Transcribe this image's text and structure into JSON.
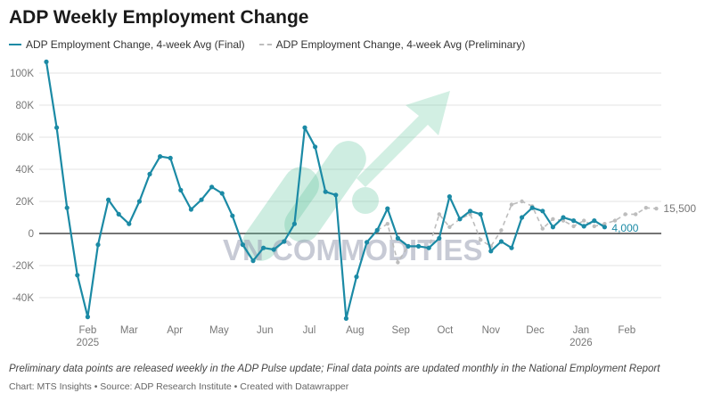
{
  "chart_data": {
    "type": "line",
    "title": "ADP Weekly Employment Change",
    "xlabel": "",
    "ylabel": "",
    "ylim": [
      -55000,
      110000
    ],
    "grid": true,
    "legend_position": "top-left",
    "y_ticks": [
      "-40K",
      "-20K",
      "0",
      "20K",
      "40K",
      "60K",
      "80K",
      "100K"
    ],
    "y_tick_values": [
      -40000,
      -20000,
      0,
      20000,
      40000,
      60000,
      80000,
      100000
    ],
    "x_ticks": [
      {
        "label": "Feb",
        "sub": "2025",
        "date": "2025-02-01"
      },
      {
        "label": "Mar",
        "sub": "",
        "date": "2025-03-01"
      },
      {
        "label": "Apr",
        "sub": "",
        "date": "2025-04-01"
      },
      {
        "label": "May",
        "sub": "",
        "date": "2025-05-01"
      },
      {
        "label": "Jun",
        "sub": "",
        "date": "2025-06-01"
      },
      {
        "label": "Jul",
        "sub": "",
        "date": "2025-07-01"
      },
      {
        "label": "Aug",
        "sub": "",
        "date": "2025-08-01"
      },
      {
        "label": "Sep",
        "sub": "",
        "date": "2025-09-01"
      },
      {
        "label": "Oct",
        "sub": "",
        "date": "2025-10-01"
      },
      {
        "label": "Nov",
        "sub": "",
        "date": "2025-11-01"
      },
      {
        "label": "Dec",
        "sub": "",
        "date": "2025-12-01"
      },
      {
        "label": "Jan",
        "sub": "2026",
        "date": "2026-01-01"
      },
      {
        "label": "Feb",
        "sub": "",
        "date": "2026-02-01"
      }
    ],
    "x_first_date": "2025-01-04",
    "x_step_days": 7,
    "series": [
      {
        "name": "ADP Employment Change, 4-week Avg (Final)",
        "color": "#1b8aa5",
        "style": "solid",
        "start_week": 0,
        "values": [
          107000,
          66000,
          16000,
          -26000,
          -52000,
          -7000,
          21000,
          12000,
          6000,
          20000,
          37000,
          48000,
          47000,
          27000,
          15000,
          21000,
          29000,
          25000,
          11000,
          -7000,
          -17000,
          -9000,
          -10000,
          -5000,
          6000,
          66000,
          54000,
          26000,
          24000,
          -53000,
          -27000,
          -5500,
          2000,
          15500,
          -3000,
          -8000,
          -8000,
          -9000,
          -3000,
          23000,
          9000,
          14000,
          12000,
          -11000,
          -5000,
          -9000,
          10000,
          16000,
          14000,
          4000,
          10000,
          8000,
          4500,
          8000,
          4000
        ],
        "end_label": "4,000"
      },
      {
        "name": "ADP Employment Change, 4-week Avg (Preliminary)",
        "color": "#bdbdbd",
        "style": "dashed",
        "start_week": 32,
        "values": [
          2000,
          6000,
          -18000,
          -8000,
          -8000,
          -9000,
          12000,
          4000,
          9000,
          12000,
          -4000,
          -8000,
          2000,
          18000,
          20000,
          17000,
          3000,
          9000,
          8000,
          4500,
          8000,
          4500,
          6000,
          8000,
          12000,
          12000,
          16000,
          15500
        ],
        "end_label": "15,500"
      }
    ]
  },
  "footer": {
    "note": "Preliminary data points are released weekly in the ADP Pulse update; Final data points are updated monthly in the National Employment Report",
    "source": "Chart: MTS Insights • Source: ADP Research Institute • Created with Datawrapper"
  },
  "watermark": {
    "text": "VN COMMODITIES"
  }
}
